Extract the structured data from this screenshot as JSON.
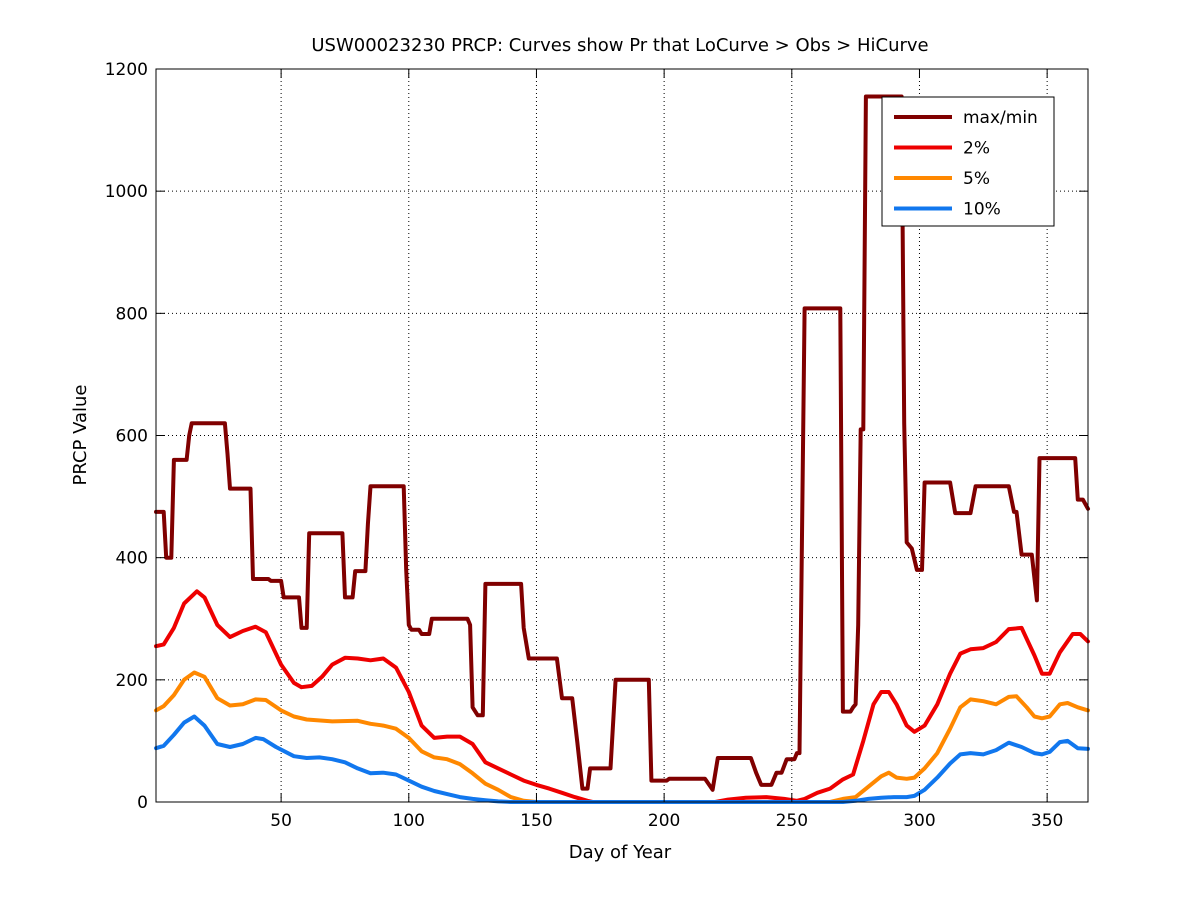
{
  "chart_data": {
    "type": "line",
    "title": "USW00023230 PRCP: Curves show Pr that LoCurve > Obs > HiCurve",
    "xlabel": "Day of Year",
    "ylabel": "PRCP Value",
    "xlim": [
      1,
      366
    ],
    "ylim": [
      0,
      1200
    ],
    "xticks": [
      50,
      100,
      150,
      200,
      250,
      300,
      350
    ],
    "yticks": [
      0,
      200,
      400,
      600,
      800,
      1000,
      1200
    ],
    "grid": true,
    "legend_position": "top-right",
    "series": [
      {
        "name": "max/min",
        "color": "#800000",
        "step": true,
        "points": [
          [
            1,
            475
          ],
          [
            4,
            475
          ],
          [
            5,
            400
          ],
          [
            7,
            400
          ],
          [
            8,
            560
          ],
          [
            13,
            560
          ],
          [
            14,
            600
          ],
          [
            15,
            620
          ],
          [
            28,
            620
          ],
          [
            29,
            570
          ],
          [
            30,
            513
          ],
          [
            38,
            513
          ],
          [
            39,
            365
          ],
          [
            45,
            365
          ],
          [
            46,
            362
          ],
          [
            50,
            362
          ],
          [
            51,
            335
          ],
          [
            57,
            335
          ],
          [
            58,
            285
          ],
          [
            60,
            285
          ],
          [
            61,
            440
          ],
          [
            74,
            440
          ],
          [
            75,
            335
          ],
          [
            78,
            335
          ],
          [
            79,
            378
          ],
          [
            83,
            378
          ],
          [
            84,
            455
          ],
          [
            85,
            517
          ],
          [
            98,
            517
          ],
          [
            99,
            380
          ],
          [
            100,
            290
          ],
          [
            101,
            282
          ],
          [
            104,
            282
          ],
          [
            105,
            275
          ],
          [
            108,
            275
          ],
          [
            109,
            300
          ],
          [
            123,
            300
          ],
          [
            124,
            290
          ],
          [
            125,
            155
          ],
          [
            127,
            142
          ],
          [
            129,
            142
          ],
          [
            130,
            357
          ],
          [
            144,
            357
          ],
          [
            145,
            285
          ],
          [
            147,
            235
          ],
          [
            158,
            235
          ],
          [
            160,
            170
          ],
          [
            164,
            170
          ],
          [
            166,
            98
          ],
          [
            168,
            22
          ],
          [
            170,
            22
          ],
          [
            171,
            55
          ],
          [
            179,
            55
          ],
          [
            181,
            200
          ],
          [
            194,
            200
          ],
          [
            195,
            35
          ],
          [
            201,
            35
          ],
          [
            202,
            38
          ],
          [
            216,
            38
          ],
          [
            219,
            20
          ],
          [
            221,
            72
          ],
          [
            234,
            72
          ],
          [
            236,
            48
          ],
          [
            238,
            28
          ],
          [
            242,
            28
          ],
          [
            244,
            48
          ],
          [
            246,
            48
          ],
          [
            248,
            70
          ],
          [
            251,
            70
          ],
          [
            252,
            80
          ],
          [
            253,
            80
          ],
          [
            255,
            808
          ],
          [
            269,
            808
          ],
          [
            270,
            148
          ],
          [
            273,
            148
          ],
          [
            274,
            155
          ],
          [
            275,
            160
          ],
          [
            276,
            290
          ],
          [
            277,
            610
          ],
          [
            278,
            610
          ],
          [
            279,
            1155
          ],
          [
            293,
            1155
          ],
          [
            294,
            620
          ],
          [
            295,
            425
          ],
          [
            297,
            415
          ],
          [
            299,
            380
          ],
          [
            301,
            380
          ],
          [
            302,
            523
          ],
          [
            312,
            523
          ],
          [
            314,
            473
          ],
          [
            320,
            473
          ],
          [
            322,
            517
          ],
          [
            335,
            517
          ],
          [
            337,
            475
          ],
          [
            338,
            475
          ],
          [
            340,
            405
          ],
          [
            344,
            405
          ],
          [
            346,
            330
          ],
          [
            347,
            563
          ],
          [
            361,
            563
          ],
          [
            362,
            495
          ],
          [
            364,
            495
          ],
          [
            366,
            480
          ]
        ]
      },
      {
        "name": "2%",
        "color": "#ee0000",
        "step": false,
        "points": [
          [
            1,
            255
          ],
          [
            4,
            258
          ],
          [
            8,
            285
          ],
          [
            12,
            325
          ],
          [
            17,
            345
          ],
          [
            20,
            335
          ],
          [
            25,
            290
          ],
          [
            30,
            270
          ],
          [
            35,
            280
          ],
          [
            40,
            287
          ],
          [
            44,
            278
          ],
          [
            50,
            225
          ],
          [
            55,
            195
          ],
          [
            58,
            188
          ],
          [
            62,
            190
          ],
          [
            66,
            205
          ],
          [
            70,
            225
          ],
          [
            75,
            236
          ],
          [
            80,
            235
          ],
          [
            85,
            232
          ],
          [
            90,
            235
          ],
          [
            95,
            220
          ],
          [
            100,
            180
          ],
          [
            105,
            125
          ],
          [
            110,
            105
          ],
          [
            115,
            107
          ],
          [
            120,
            107
          ],
          [
            125,
            95
          ],
          [
            130,
            65
          ],
          [
            135,
            55
          ],
          [
            140,
            45
          ],
          [
            145,
            35
          ],
          [
            150,
            28
          ],
          [
            155,
            22
          ],
          [
            160,
            15
          ],
          [
            165,
            8
          ],
          [
            170,
            2
          ],
          [
            172,
            0
          ],
          [
            220,
            0
          ],
          [
            225,
            4
          ],
          [
            232,
            7
          ],
          [
            240,
            8
          ],
          [
            247,
            5
          ],
          [
            252,
            2
          ],
          [
            255,
            5
          ],
          [
            260,
            15
          ],
          [
            265,
            22
          ],
          [
            270,
            37
          ],
          [
            274,
            45
          ],
          [
            278,
            100
          ],
          [
            282,
            160
          ],
          [
            285,
            180
          ],
          [
            288,
            180
          ],
          [
            291,
            160
          ],
          [
            295,
            125
          ],
          [
            298,
            115
          ],
          [
            302,
            125
          ],
          [
            307,
            160
          ],
          [
            312,
            210
          ],
          [
            316,
            243
          ],
          [
            320,
            250
          ],
          [
            325,
            252
          ],
          [
            330,
            262
          ],
          [
            335,
            283
          ],
          [
            340,
            285
          ],
          [
            345,
            240
          ],
          [
            348,
            210
          ],
          [
            351,
            210
          ],
          [
            355,
            245
          ],
          [
            360,
            275
          ],
          [
            363,
            275
          ],
          [
            366,
            263
          ]
        ]
      },
      {
        "name": "5%",
        "color": "#ff8800",
        "step": false,
        "points": [
          [
            1,
            150
          ],
          [
            4,
            157
          ],
          [
            8,
            175
          ],
          [
            12,
            200
          ],
          [
            16,
            212
          ],
          [
            20,
            205
          ],
          [
            25,
            170
          ],
          [
            30,
            158
          ],
          [
            35,
            160
          ],
          [
            40,
            168
          ],
          [
            44,
            167
          ],
          [
            50,
            150
          ],
          [
            55,
            140
          ],
          [
            60,
            135
          ],
          [
            70,
            132
          ],
          [
            80,
            133
          ],
          [
            85,
            128
          ],
          [
            90,
            125
          ],
          [
            95,
            120
          ],
          [
            100,
            105
          ],
          [
            105,
            83
          ],
          [
            110,
            73
          ],
          [
            115,
            70
          ],
          [
            120,
            62
          ],
          [
            125,
            47
          ],
          [
            130,
            30
          ],
          [
            135,
            20
          ],
          [
            140,
            8
          ],
          [
            145,
            2
          ],
          [
            150,
            0
          ],
          [
            265,
            0
          ],
          [
            270,
            5
          ],
          [
            275,
            8
          ],
          [
            280,
            25
          ],
          [
            285,
            42
          ],
          [
            288,
            48
          ],
          [
            291,
            40
          ],
          [
            295,
            38
          ],
          [
            298,
            40
          ],
          [
            302,
            55
          ],
          [
            307,
            80
          ],
          [
            312,
            120
          ],
          [
            316,
            155
          ],
          [
            320,
            168
          ],
          [
            325,
            165
          ],
          [
            330,
            160
          ],
          [
            335,
            172
          ],
          [
            338,
            173
          ],
          [
            342,
            155
          ],
          [
            345,
            140
          ],
          [
            348,
            137
          ],
          [
            351,
            140
          ],
          [
            355,
            160
          ],
          [
            358,
            162
          ],
          [
            362,
            155
          ],
          [
            366,
            150
          ]
        ]
      },
      {
        "name": "10%",
        "color": "#1177ee",
        "step": false,
        "points": [
          [
            1,
            88
          ],
          [
            4,
            92
          ],
          [
            8,
            110
          ],
          [
            12,
            130
          ],
          [
            16,
            140
          ],
          [
            20,
            125
          ],
          [
            25,
            95
          ],
          [
            30,
            90
          ],
          [
            35,
            95
          ],
          [
            40,
            105
          ],
          [
            43,
            103
          ],
          [
            48,
            90
          ],
          [
            55,
            75
          ],
          [
            60,
            72
          ],
          [
            65,
            73
          ],
          [
            70,
            70
          ],
          [
            75,
            65
          ],
          [
            80,
            55
          ],
          [
            85,
            47
          ],
          [
            90,
            48
          ],
          [
            95,
            45
          ],
          [
            100,
            35
          ],
          [
            105,
            25
          ],
          [
            110,
            18
          ],
          [
            115,
            13
          ],
          [
            120,
            8
          ],
          [
            125,
            5
          ],
          [
            130,
            3
          ],
          [
            135,
            1
          ],
          [
            140,
            0
          ],
          [
            270,
            0
          ],
          [
            275,
            2
          ],
          [
            280,
            5
          ],
          [
            285,
            7
          ],
          [
            290,
            8
          ],
          [
            295,
            8
          ],
          [
            298,
            10
          ],
          [
            302,
            20
          ],
          [
            307,
            40
          ],
          [
            312,
            63
          ],
          [
            316,
            78
          ],
          [
            320,
            80
          ],
          [
            325,
            78
          ],
          [
            330,
            85
          ],
          [
            335,
            97
          ],
          [
            340,
            90
          ],
          [
            345,
            80
          ],
          [
            348,
            78
          ],
          [
            351,
            82
          ],
          [
            355,
            98
          ],
          [
            358,
            100
          ],
          [
            362,
            88
          ],
          [
            366,
            87
          ]
        ]
      }
    ]
  }
}
